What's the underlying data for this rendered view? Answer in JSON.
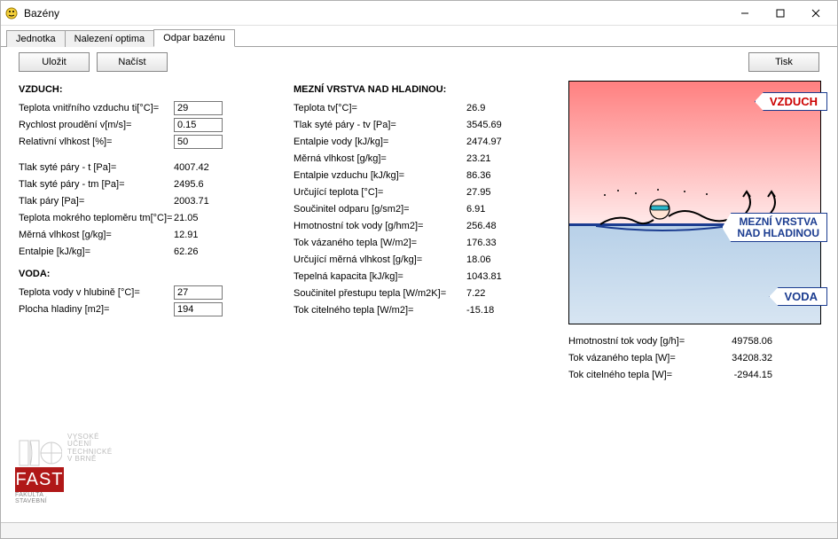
{
  "window": {
    "title": "Bazény"
  },
  "tabs": {
    "items": [
      "Jednotka",
      "Nalezení optima",
      "Odpar bazénu"
    ],
    "active": 2
  },
  "toolbar": {
    "save": "Uložit",
    "load": "Načíst",
    "print": "Tisk"
  },
  "vzduch": {
    "header": "VZDUCH:",
    "inputs": {
      "teplota": {
        "label": "Teplota vnitřního vzduchu ti[°C]=",
        "value": "29"
      },
      "rychlost": {
        "label": "Rychlost proudění v[m/s]=",
        "value": "0.15"
      },
      "vlhkost": {
        "label": "Relativní vlhkost [%]=",
        "value": "50"
      }
    },
    "calc": [
      {
        "label": "Tlak syté páry - t [Pa]=",
        "value": "4007.42"
      },
      {
        "label": "Tlak syté páry - tm [Pa]=",
        "value": "2495.6"
      },
      {
        "label": "Tlak páry [Pa]=",
        "value": "2003.71"
      },
      {
        "label": "Teplota mokrého teploměru tm[°C]=",
        "value": "21.05"
      },
      {
        "label": "Měrná vlhkost [g/kg]=",
        "value": "12.91"
      },
      {
        "label": "Entalpie [kJ/kg]=",
        "value": "62.26"
      }
    ]
  },
  "voda": {
    "header": "VODA:",
    "inputs": {
      "teplota": {
        "label": "Teplota vody v hlubině [°C]=",
        "value": "27"
      },
      "plocha": {
        "label": "Plocha hladiny [m2]=",
        "value": "194"
      }
    }
  },
  "mezni": {
    "header": "MEZNÍ VRSTVA NAD HLADINOU:",
    "rows": [
      {
        "label": "Teplota tv[°C]=",
        "value": "26.9"
      },
      {
        "label": "Tlak syté páry - tv [Pa]=",
        "value": "3545.69"
      },
      {
        "label": "Entalpie vody [kJ/kg]=",
        "value": "2474.97"
      },
      {
        "label": "Měrná vlhkost [g/kg]=",
        "value": "23.21"
      },
      {
        "label": "Entalpie vzduchu [kJ/kg]=",
        "value": "86.36"
      },
      {
        "label": "Určující teplota [°C]=",
        "value": "27.95"
      },
      {
        "label": "Součinitel odparu [g/sm2]=",
        "value": "6.91"
      },
      {
        "label": "Hmotnostní tok vody [g/hm2]=",
        "value": "256.48"
      },
      {
        "label": "Tok vázaného tepla [W/m2]=",
        "value": "176.33"
      },
      {
        "label": "Určující měrná vlhkost [g/kg]=",
        "value": "18.06"
      },
      {
        "label": "Tepelná kapacita [kJ/kg]=",
        "value": "1043.81"
      },
      {
        "label": "Součinitel přestupu tepla [W/m2K]=",
        "value": "7.22"
      },
      {
        "label": "Tok citelného tepla [W/m2]=",
        "value": "-15.18"
      }
    ]
  },
  "summary": [
    {
      "label": "Hmotnostní tok vody [g/h]=",
      "value": "49758.06"
    },
    {
      "label": "Tok vázaného tepla [W]=",
      "value": "34208.32"
    },
    {
      "label": "Tok citelného tepla [W]=",
      "value": "-2944.15"
    }
  ],
  "diagram": {
    "labels": {
      "vzduch": "VZDUCH",
      "mezni1": "MEZNÍ VRSTVA",
      "mezni2": "NAD HLADINOU",
      "voda": "VODA"
    },
    "colors": {
      "air_top": "#ff8080",
      "air_bot": "#ffe9e9",
      "water_top": "#b7d0e8",
      "water_bot": "#d7e5f2",
      "line": "#1b3c90",
      "text_red": "#cc0000"
    }
  },
  "logo": {
    "fast": "FAST",
    "sub1": "FAKULTA",
    "sub2": "STAVEBNÍ",
    "right": "VYSOKÉ\nUČENÍ\nTECHNICKÉ\nV BRNĚ"
  }
}
